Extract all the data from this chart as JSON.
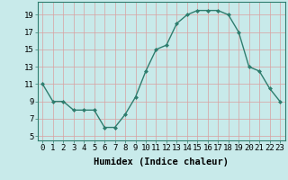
{
  "x": [
    0,
    1,
    2,
    3,
    4,
    5,
    6,
    7,
    8,
    9,
    10,
    11,
    12,
    13,
    14,
    15,
    16,
    17,
    18,
    19,
    20,
    21,
    22,
    23
  ],
  "y": [
    11,
    9,
    9,
    8,
    8,
    8,
    6,
    6,
    7.5,
    9.5,
    12.5,
    15,
    15.5,
    18,
    19,
    19.5,
    19.5,
    19.5,
    19,
    17,
    13,
    12.5,
    10.5,
    9
  ],
  "line_color": "#2e7d6e",
  "marker_color": "#2e7d6e",
  "bg_color": "#c8eaea",
  "grid_color": "#d9a0a0",
  "xlabel": "Humidex (Indice chaleur)",
  "yticks": [
    5,
    7,
    9,
    11,
    13,
    15,
    17,
    19
  ],
  "xticks": [
    0,
    1,
    2,
    3,
    4,
    5,
    6,
    7,
    8,
    9,
    10,
    11,
    12,
    13,
    14,
    15,
    16,
    17,
    18,
    19,
    20,
    21,
    22,
    23
  ],
  "ylim": [
    4.5,
    20.5
  ],
  "xlim": [
    -0.5,
    23.5
  ],
  "xlabel_fontsize": 7.5,
  "tick_fontsize": 6.5
}
